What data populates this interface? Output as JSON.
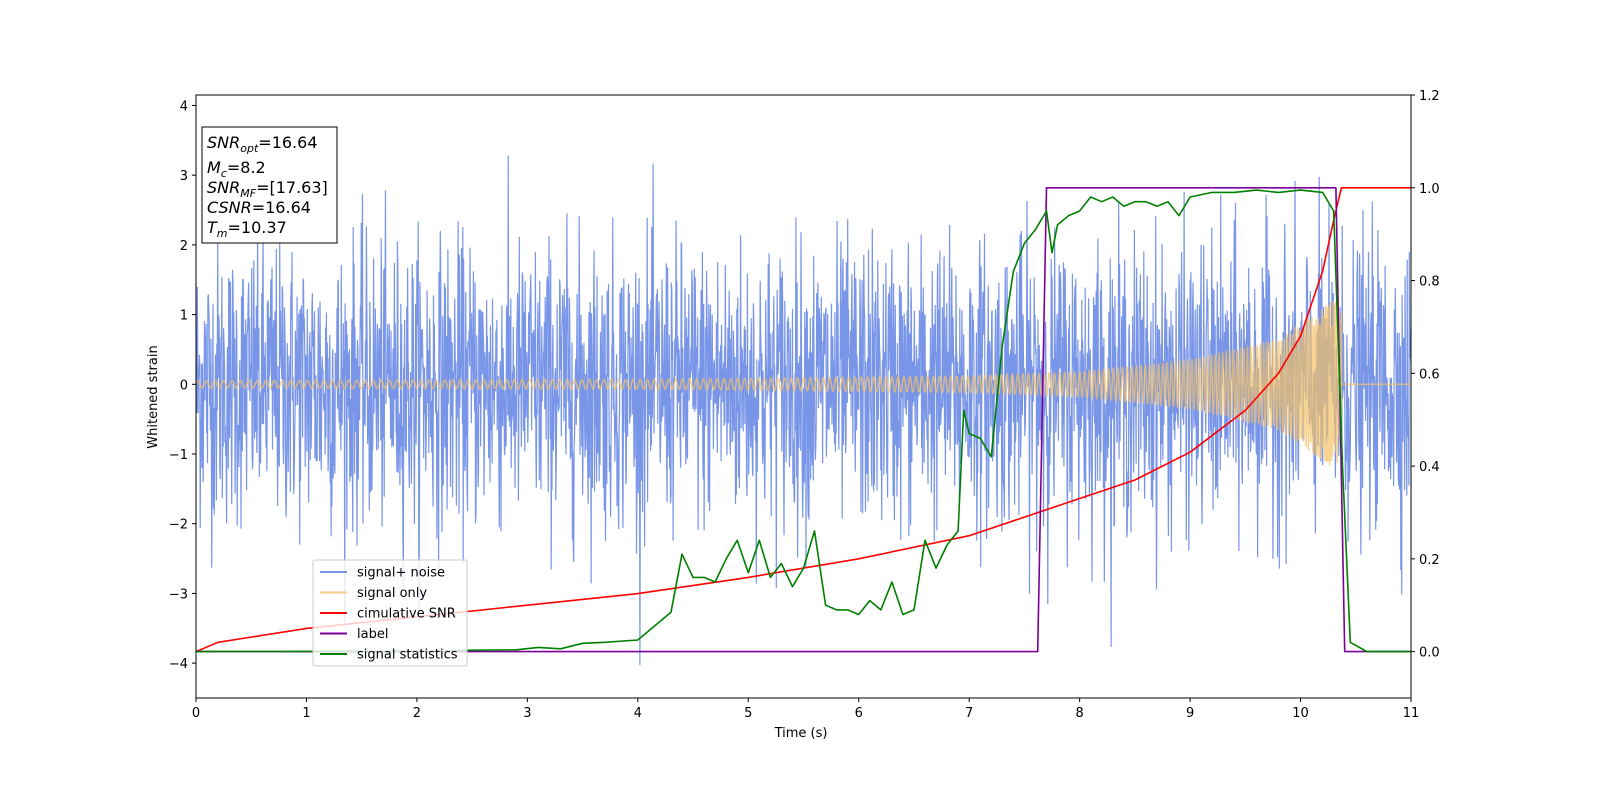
{
  "chart_data": {
    "type": "line",
    "title": "",
    "xlabel": "Time (s)",
    "ylabel": "Whitened strain",
    "xlim": [
      0,
      11
    ],
    "ylim": [
      -4.5,
      4.15
    ],
    "y2lim": [
      -0.1,
      1.2
    ],
    "x_ticks": [
      0,
      1,
      2,
      3,
      4,
      5,
      6,
      7,
      8,
      9,
      10,
      11
    ],
    "y_ticks": [
      -4,
      -3,
      -2,
      -1,
      0,
      1,
      2,
      3,
      4
    ],
    "y_tick_labels": [
      "−4",
      "−3",
      "−2",
      "−1",
      "0",
      "1",
      "2",
      "3",
      "4"
    ],
    "y2_ticks": [
      0.0,
      0.2,
      0.4,
      0.6,
      0.8,
      1.0,
      1.2
    ],
    "y2_tick_labels": [
      "0.0",
      "0.2",
      "0.4",
      "0.6",
      "0.8",
      "1.0",
      "1.2"
    ],
    "grid": false,
    "legend_position": "lower-left",
    "info_box": {
      "snr_opt": {
        "base": "SNR",
        "sub": "opt",
        "value": "=16.64"
      },
      "mc": {
        "base": "M",
        "sub": "c",
        "value": "=8.2"
      },
      "snr_mf": {
        "base": "SNR",
        "sub": "MF",
        "value": "=[17.63]"
      },
      "csnr": {
        "base": "CSNR",
        "sub": "",
        "value": "=16.64"
      },
      "tm": {
        "base": "T",
        "sub": "m",
        "value": "=10.37"
      }
    },
    "series": [
      {
        "name": "signal+ noise",
        "color": "#7895e8",
        "axis": "left",
        "description_kind": "noise",
        "noise_std": 1.0,
        "noise_peak": 3.8,
        "samples_per_second": 260
      },
      {
        "name": "signal only",
        "color": "#f5c266",
        "axis": "left",
        "description_kind": "chirp",
        "amplitude_points": [
          [
            0,
            0.05
          ],
          [
            4,
            0.07
          ],
          [
            7,
            0.12
          ],
          [
            8,
            0.18
          ],
          [
            9,
            0.35
          ],
          [
            9.8,
            0.65
          ],
          [
            10.3,
            1.2
          ],
          [
            10.37,
            1.3
          ]
        ],
        "merger_time": 10.37
      },
      {
        "name": "cimulative SNR",
        "color": "#ff0000",
        "axis": "right",
        "points": [
          [
            0,
            0.0
          ],
          [
            0.2,
            0.02
          ],
          [
            1,
            0.05
          ],
          [
            2,
            0.075
          ],
          [
            3,
            0.1
          ],
          [
            4,
            0.125
          ],
          [
            5,
            0.16
          ],
          [
            6,
            0.2
          ],
          [
            7,
            0.25
          ],
          [
            7.5,
            0.29
          ],
          [
            8,
            0.33
          ],
          [
            8.5,
            0.37
          ],
          [
            9,
            0.43
          ],
          [
            9.5,
            0.52
          ],
          [
            9.8,
            0.6
          ],
          [
            10,
            0.68
          ],
          [
            10.2,
            0.82
          ],
          [
            10.3,
            0.93
          ],
          [
            10.37,
            1.0
          ],
          [
            11,
            1.0
          ]
        ]
      },
      {
        "name": "label",
        "color": "#7b0099",
        "axis": "right",
        "points": [
          [
            0,
            0
          ],
          [
            7.62,
            0
          ],
          [
            7.7,
            1.0
          ],
          [
            10.32,
            1.0
          ],
          [
            10.4,
            0
          ],
          [
            11,
            0
          ]
        ]
      },
      {
        "name": "signal statistics",
        "color": "#008000",
        "axis": "right",
        "points": [
          [
            0,
            0
          ],
          [
            2.0,
            0.001
          ],
          [
            2.5,
            0.003
          ],
          [
            2.9,
            0.004
          ],
          [
            3.1,
            0.009
          ],
          [
            3.3,
            0.006
          ],
          [
            3.5,
            0.018
          ],
          [
            3.7,
            0.02
          ],
          [
            4.0,
            0.025
          ],
          [
            4.1,
            0.045
          ],
          [
            4.2,
            0.065
          ],
          [
            4.3,
            0.085
          ],
          [
            4.4,
            0.21
          ],
          [
            4.5,
            0.16
          ],
          [
            4.6,
            0.16
          ],
          [
            4.7,
            0.15
          ],
          [
            4.8,
            0.2
          ],
          [
            4.9,
            0.24
          ],
          [
            5.0,
            0.17
          ],
          [
            5.1,
            0.24
          ],
          [
            5.2,
            0.16
          ],
          [
            5.3,
            0.19
          ],
          [
            5.4,
            0.14
          ],
          [
            5.5,
            0.18
          ],
          [
            5.6,
            0.26
          ],
          [
            5.7,
            0.1
          ],
          [
            5.8,
            0.09
          ],
          [
            5.9,
            0.09
          ],
          [
            6.0,
            0.08
          ],
          [
            6.1,
            0.11
          ],
          [
            6.2,
            0.09
          ],
          [
            6.3,
            0.15
          ],
          [
            6.4,
            0.08
          ],
          [
            6.5,
            0.09
          ],
          [
            6.6,
            0.24
          ],
          [
            6.7,
            0.18
          ],
          [
            6.8,
            0.23
          ],
          [
            6.9,
            0.26
          ],
          [
            6.95,
            0.52
          ],
          [
            7.0,
            0.47
          ],
          [
            7.1,
            0.46
          ],
          [
            7.2,
            0.42
          ],
          [
            7.3,
            0.66
          ],
          [
            7.4,
            0.82
          ],
          [
            7.5,
            0.88
          ],
          [
            7.6,
            0.91
          ],
          [
            7.7,
            0.95
          ],
          [
            7.75,
            0.86
          ],
          [
            7.8,
            0.92
          ],
          [
            7.9,
            0.94
          ],
          [
            8.0,
            0.95
          ],
          [
            8.1,
            0.98
          ],
          [
            8.2,
            0.97
          ],
          [
            8.3,
            0.98
          ],
          [
            8.4,
            0.96
          ],
          [
            8.5,
            0.97
          ],
          [
            8.6,
            0.97
          ],
          [
            8.7,
            0.96
          ],
          [
            8.8,
            0.97
          ],
          [
            8.9,
            0.94
          ],
          [
            9.0,
            0.98
          ],
          [
            9.2,
            0.99
          ],
          [
            9.4,
            0.99
          ],
          [
            9.6,
            0.995
          ],
          [
            9.8,
            0.99
          ],
          [
            10.0,
            0.995
          ],
          [
            10.2,
            0.99
          ],
          [
            10.3,
            0.95
          ],
          [
            10.38,
            0.4
          ],
          [
            10.45,
            0.02
          ],
          [
            10.6,
            0.0
          ],
          [
            11,
            0.0
          ]
        ]
      }
    ]
  }
}
